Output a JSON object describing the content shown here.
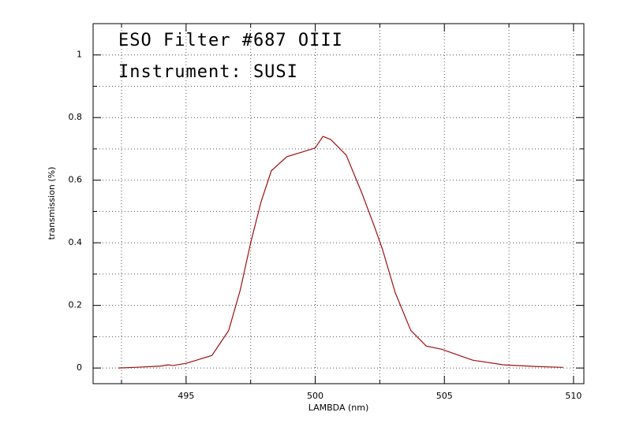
{
  "chart_data": {
    "type": "line",
    "annotations": [
      "ESO Filter #687 OIII",
      "Instrument: SUSI"
    ],
    "xlabel": "LAMBDA (nm)",
    "ylabel": "transmission (%)",
    "x": [
      492.37,
      493,
      494,
      494.3,
      494.5,
      495,
      496,
      496.65,
      497.1,
      497.5,
      497.9,
      498.3,
      498.9,
      499.5,
      500,
      500.3,
      500.6,
      501.2,
      501.8,
      502.3,
      502.6,
      503.1,
      503.7,
      504.3,
      504.9,
      505.4,
      506.1,
      507.3,
      508.5,
      509.2,
      509.6
    ],
    "series": [
      {
        "name": "transmission",
        "color": "#a01010",
        "values": [
          0,
          0.002,
          0.006,
          0.01,
          0.008,
          0.015,
          0.04,
          0.12,
          0.25,
          0.4,
          0.53,
          0.63,
          0.675,
          0.69,
          0.703,
          0.74,
          0.73,
          0.68,
          0.56,
          0.45,
          0.38,
          0.24,
          0.12,
          0.07,
          0.06,
          0.045,
          0.025,
          0.01,
          0.005,
          0.003,
          0.002
        ]
      }
    ],
    "xlim": [
      491.4,
      510.4
    ],
    "ylim": [
      -0.05,
      1.1
    ],
    "xticks": [
      495,
      500,
      505,
      510
    ],
    "yticks": [
      0,
      0.2,
      0.4,
      0.6,
      0.8,
      1
    ],
    "xminorticks": [
      492.5,
      497.5,
      502.5,
      507.5
    ],
    "yminorticks": [
      0.1,
      0.3,
      0.5,
      0.7,
      0.9
    ],
    "grid": true
  }
}
